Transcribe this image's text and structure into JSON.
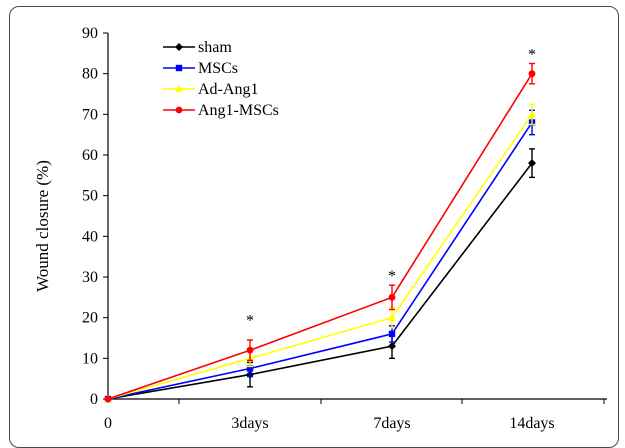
{
  "chart_data": {
    "type": "line",
    "ylabel": "Wound closure (%)",
    "xlabel": "",
    "categories": [
      "0",
      "3days",
      "7days",
      "14days"
    ],
    "ylim": [
      0,
      90
    ],
    "yticks": [
      0,
      10,
      20,
      30,
      40,
      50,
      60,
      70,
      80,
      90
    ],
    "legend_position": "top-left",
    "grid": false,
    "series": [
      {
        "name": "sham",
        "color": "#000000",
        "marker": "diamond",
        "values": [
          0,
          6,
          13,
          58
        ],
        "errors": [
          0,
          3,
          3,
          3.5
        ]
      },
      {
        "name": "MSCs",
        "color": "#0000ff",
        "marker": "square",
        "values": [
          0,
          7.5,
          16,
          68
        ],
        "errors": [
          0,
          2,
          2,
          3
        ]
      },
      {
        "name": "Ad-Ang1",
        "color": "#ffff00",
        "marker": "triangle",
        "values": [
          0,
          10,
          20,
          70
        ],
        "errors": [
          0,
          2,
          2.5,
          2.5
        ]
      },
      {
        "name": "Ang1-MSCs",
        "color": "#ff0000",
        "marker": "circle",
        "values": [
          0,
          12,
          25,
          80
        ],
        "errors": [
          0,
          2.5,
          3,
          2.5
        ]
      }
    ],
    "annotations": [
      {
        "text": "*",
        "category": "3days",
        "y": 20.5
      },
      {
        "text": "*",
        "category": "7days",
        "y": 31.5
      },
      {
        "text": "*",
        "category": "14days",
        "y": 86
      }
    ]
  }
}
